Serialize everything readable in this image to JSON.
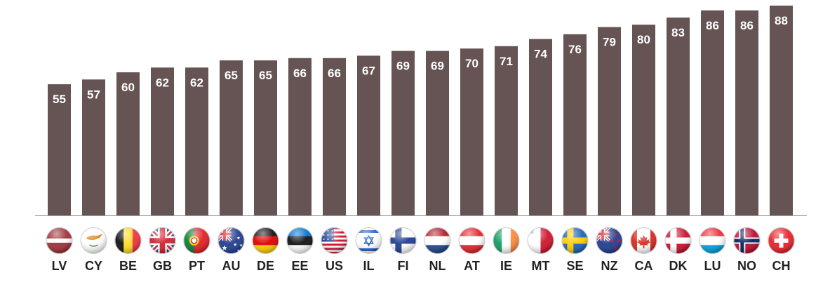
{
  "chart_data": {
    "type": "bar",
    "categories": [
      "LV",
      "CY",
      "BE",
      "GB",
      "PT",
      "AU",
      "DE",
      "EE",
      "US",
      "IL",
      "FI",
      "NL",
      "AT",
      "IE",
      "MT",
      "SE",
      "NZ",
      "CA",
      "DK",
      "LU",
      "NO",
      "CH"
    ],
    "values": [
      55,
      57,
      60,
      62,
      62,
      65,
      65,
      66,
      66,
      67,
      69,
      69,
      70,
      71,
      74,
      76,
      79,
      80,
      83,
      86,
      86,
      88
    ],
    "title": "",
    "xlabel": "",
    "ylabel": "",
    "ylim": [
      0,
      88
    ],
    "grid": false,
    "legend": "none",
    "data_labels": true,
    "icons": [
      "flag-lv-icon",
      "flag-cy-icon",
      "flag-be-icon",
      "flag-gb-icon",
      "flag-pt-icon",
      "flag-au-icon",
      "flag-de-icon",
      "flag-ee-icon",
      "flag-us-icon",
      "flag-il-icon",
      "flag-fi-icon",
      "flag-nl-icon",
      "flag-at-icon",
      "flag-ie-icon",
      "flag-mt-icon",
      "flag-se-icon",
      "flag-nz-icon",
      "flag-ca-icon",
      "flag-dk-icon",
      "flag-lu-icon",
      "flag-no-icon",
      "flag-ch-icon"
    ]
  },
  "colors": {
    "bar": "#665353",
    "baseline": "#9a9a9a",
    "value_text": "#ffffff",
    "category_text": "#222222"
  }
}
